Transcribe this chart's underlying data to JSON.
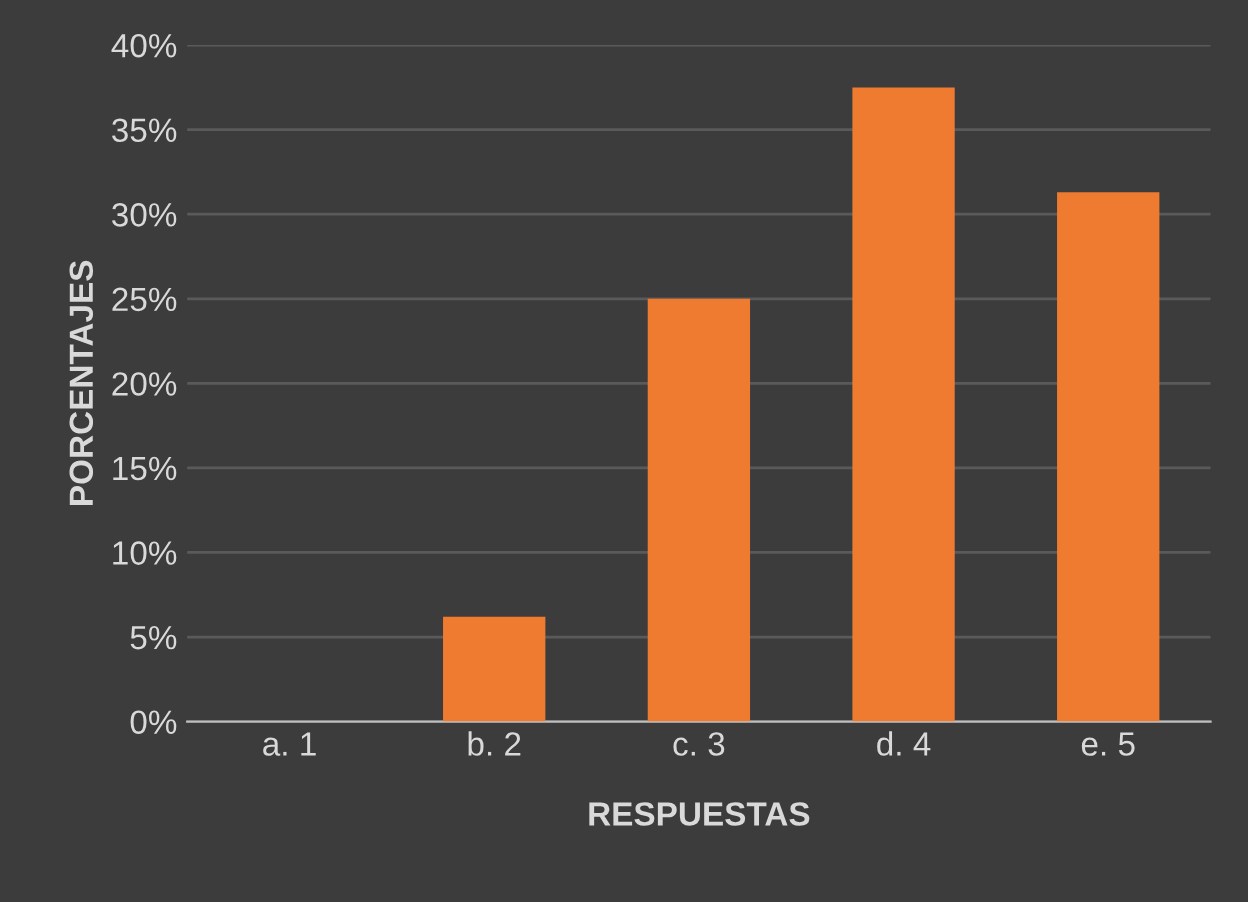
{
  "chart_data": {
    "type": "bar",
    "xlabel": "RESPUESTAS",
    "ylabel": "PORCENTAJES",
    "categories": [
      "a. 1",
      "b. 2",
      "c. 3",
      "d. 4",
      "e. 5"
    ],
    "values": [
      0,
      6.2,
      25,
      37.5,
      31.3
    ],
    "color": "#ee7b30",
    "ylim": [
      0,
      40
    ],
    "yticks": [
      {
        "value": 0,
        "label": "0%"
      },
      {
        "value": 5,
        "label": "5%"
      },
      {
        "value": 10,
        "label": "10%"
      },
      {
        "value": 15,
        "label": "15%"
      },
      {
        "value": 20,
        "label": "20%"
      },
      {
        "value": 25,
        "label": "25%"
      },
      {
        "value": 30,
        "label": "30%"
      },
      {
        "value": 35,
        "label": "35%"
      },
      {
        "value": 40,
        "label": "40%"
      }
    ],
    "grid": "y",
    "legend": false
  }
}
